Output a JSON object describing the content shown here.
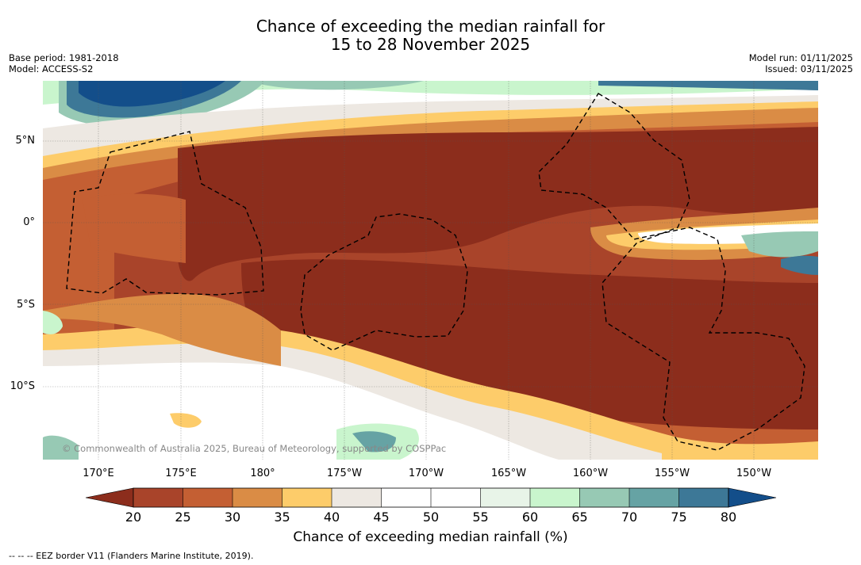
{
  "title_line1": "Chance of exceeding the median rainfall for",
  "title_line2": "15 to 28 November 2025",
  "base_period": "Base period: 1981-2018",
  "model": "Model: ACCESS-S2",
  "model_run": "Model run: 01/11/2025",
  "issued": "Issued: 03/11/2025",
  "lat_labels": [
    "5°N",
    "0°",
    "5°S",
    "10°S"
  ],
  "lon_labels": [
    "170°E",
    "175°E",
    "180°",
    "175°W",
    "170°W",
    "165°W",
    "160°W",
    "155°W",
    "150°W"
  ],
  "copyright": "© Commonwealth of Australia 2025, Bureau of Meteorology, supported by COSPPac",
  "colorbar": {
    "ticks": [
      "20",
      "25",
      "30",
      "35",
      "40",
      "45",
      "50",
      "55",
      "60",
      "65",
      "70",
      "75",
      "80"
    ],
    "label": "Chance of exceeding median rainfall (%)",
    "colors": [
      "#8c2d1c",
      "#a9442a",
      "#c45f33",
      "#da8c45",
      "#fdcc6a",
      "#ede8e2",
      "#ffffff",
      "#ffffff",
      "#e8f4e8",
      "#c9f5cd",
      "#97c9b4",
      "#66a3a4",
      "#3d7897",
      "#134e8a"
    ]
  },
  "legend_note": "--  --  -- EEZ border V11 (Flanders Marine Institute, 2019)."
}
